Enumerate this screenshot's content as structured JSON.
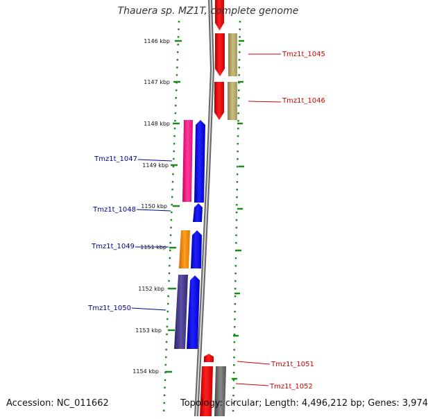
{
  "title": "Thauera sp. MZ1T, complete genome",
  "accession": "Accession: NC_011662",
  "summary": "Topology: circular; Length: 4,496,212 bp; Genes: 3,974",
  "scale_labels": [
    "1146 kbp",
    "1147 kbp",
    "1148 kbp",
    "1149 kbp",
    "1150 kbp",
    "1151 kbp",
    "1152 kbp",
    "1153 kbp",
    "1154 kbp"
  ],
  "genes": [
    {
      "id": "Tmz1t_1045",
      "strand": "forward",
      "color": "#cc0000"
    },
    {
      "id": "Tmz1t_1046",
      "strand": "forward",
      "color": "#cc0000"
    },
    {
      "id": "Tmz1t_1047",
      "strand": "reverse",
      "color": "#00008b"
    },
    {
      "id": "Tmz1t_1048",
      "strand": "reverse",
      "color": "#00008b"
    },
    {
      "id": "Tmz1t_1049",
      "strand": "reverse",
      "color": "#00008b"
    },
    {
      "id": "Tmz1t_1050",
      "strand": "reverse",
      "color": "#00008b"
    },
    {
      "id": "Tmz1t_1051",
      "strand": "forward",
      "color": "#cc0000"
    },
    {
      "id": "Tmz1t_1052",
      "strand": "forward",
      "color": "#cc0000"
    }
  ],
  "colors": {
    "forward_cds": "#ff0000",
    "reverse_cds": "#0000ff",
    "backbone": "#888888",
    "tick": "#1a8a1a",
    "cog_1045": "#b8ad6f",
    "cog_1046": "#b8ad6f",
    "cog_1047": "#ff2a8a",
    "cog_1049": "#ff8c00",
    "cog_1050": "#3c3480",
    "cog_1052": "#666666"
  }
}
